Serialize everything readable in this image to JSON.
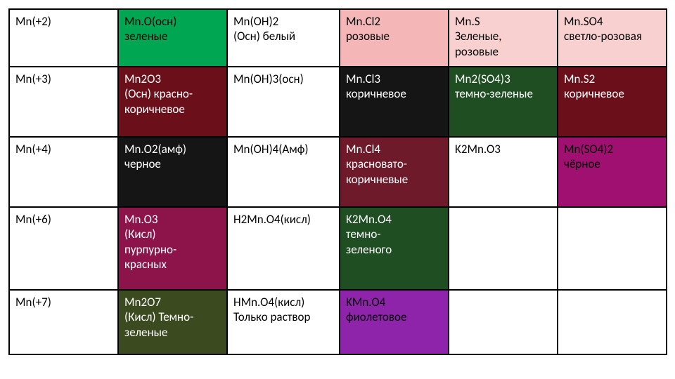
{
  "table": {
    "colors": {
      "white": "#ffffff",
      "black": "#000000",
      "green_bright": "#00a651",
      "pink_light": "#f4b6b6",
      "pink_pale": "#f9d0d0",
      "dark_red": "#6b0f1a",
      "maroon": "#6e1a2a",
      "dark_green": "#1f4e23",
      "olive_dark": "#3b4a1f",
      "purple_deep": "#8c144b",
      "magenta": "#a01070",
      "violet": "#8e24aa",
      "near_black": "#151515"
    },
    "col_widths": [
      "155",
      "155",
      "160",
      "155",
      "155",
      "155"
    ],
    "rows": [
      {
        "cells": [
          {
            "text": "Mn(+2)",
            "bg": "#ffffff",
            "fg": "#000000"
          },
          {
            "text": "Mn.O(осн)\nзеленые",
            "bg": "#00a651",
            "fg": "#000000"
          },
          {
            "text": "Mn(OH)2\n(Осн) белый",
            "bg": "#ffffff",
            "fg": "#000000"
          },
          {
            "text": "Mn.Cl2\n розовые",
            "bg": "#f4b6b6",
            "fg": "#000000"
          },
          {
            "text": "Mn.S\nЗеленые,\n розовые",
            "bg": "#f9d0d0",
            "fg": "#000000"
          },
          {
            "text": "Mn.SO4\nсветло-розовая",
            "bg": "#f9d0d0",
            "fg": "#000000"
          }
        ]
      },
      {
        "cells": [
          {
            "text": "Mn(+3)",
            "bg": "#ffffff",
            "fg": "#000000"
          },
          {
            "text": "Mn2O3\n(Осн) красно-\nкоричневое",
            "bg": "#6b0f1a",
            "fg": "#ffffff"
          },
          {
            "text": "Mn(OH)3(осн)",
            "bg": "#ffffff",
            "fg": "#000000"
          },
          {
            "text": "Mn.Cl3\nкоричневое",
            "bg": "#151515",
            "fg": "#ffffff"
          },
          {
            "text": "Mn2(SO4)3\nтемно-зеленые",
            "bg": "#1f4e23",
            "fg": "#ffffff"
          },
          {
            "text": "Mn.S2\nкоричневое",
            "bg": "#6b0f1a",
            "fg": "#ffffff"
          }
        ]
      },
      {
        "cells": [
          {
            "text": "Mn(+4)",
            "bg": "#ffffff",
            "fg": "#000000"
          },
          {
            "text": "Mn.O2(амф)\nчерное",
            "bg": "#151515",
            "fg": "#ffffff"
          },
          {
            "text": "Mn(OH)4(Амф)",
            "bg": "#ffffff",
            "fg": "#000000"
          },
          {
            "text": "Mn.Cl4\nкрасновато-\nкоричневые",
            "bg": "#6e1a2a",
            "fg": "#ffffff"
          },
          {
            "text": "K2Mn.O3",
            "bg": "#ffffff",
            "fg": "#000000"
          },
          {
            "text": "Mn(SO4)2\nчёрное",
            "bg": "#a01070",
            "fg": "#000000"
          }
        ]
      },
      {
        "cells": [
          {
            "text": "Mn(+6)",
            "bg": "#ffffff",
            "fg": "#000000"
          },
          {
            "text": "Mn.O3\n(Кисл)\nпурпурно-\nкрасных",
            "bg": "#8c144b",
            "fg": "#ffffff"
          },
          {
            "text": "H2Mn.O4(кисл)",
            "bg": "#ffffff",
            "fg": "#000000"
          },
          {
            "text": "K2Mn.O4\nтемно-\nзеленого",
            "bg": "#1f4e23",
            "fg": "#ffffff"
          },
          {
            "text": "",
            "bg": "#ffffff",
            "fg": "#000000"
          },
          {
            "text": "",
            "bg": "#ffffff",
            "fg": "#000000"
          }
        ]
      },
      {
        "cells": [
          {
            "text": "Mn(+7)",
            "bg": "#ffffff",
            "fg": "#000000"
          },
          {
            "text": "Mn2O7\n(Кисл) Темно-\nзеленые",
            "bg": "#3b4a1f",
            "fg": "#ffffff"
          },
          {
            "text": "HMn.O4(кисл)\nТолько раствор",
            "bg": "#ffffff",
            "fg": "#000000"
          },
          {
            "text": "KMn.O4\nфиолетовое",
            "bg": "#8e24aa",
            "fg": "#000000"
          },
          {
            "text": "",
            "bg": "#ffffff",
            "fg": "#000000"
          },
          {
            "text": "",
            "bg": "#ffffff",
            "fg": "#000000"
          }
        ]
      }
    ]
  }
}
